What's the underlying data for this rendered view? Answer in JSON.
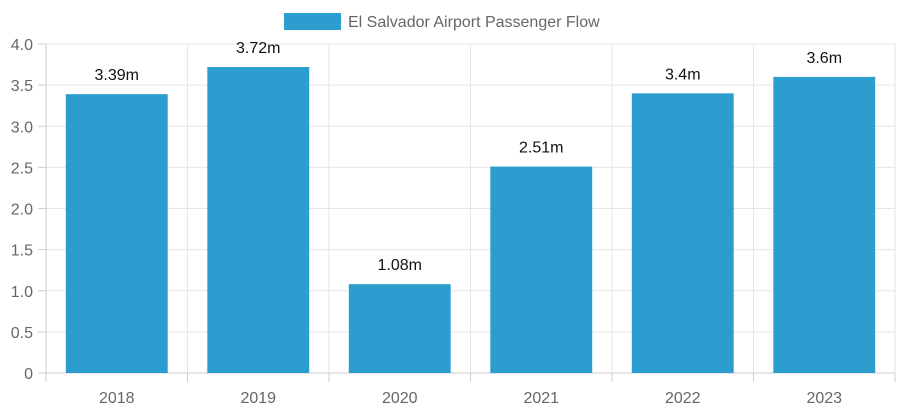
{
  "chart_data": {
    "type": "bar",
    "categories": [
      "2018",
      "2019",
      "2020",
      "2021",
      "2022",
      "2023"
    ],
    "series": [
      {
        "name": "El Salvador Airport Passenger Flow",
        "values": [
          3.39,
          3.72,
          1.08,
          2.51,
          3.4,
          3.6
        ],
        "data_labels": [
          "3.39m",
          "3.72m",
          "1.08m",
          "2.51m",
          "3.4m",
          "3.6m"
        ],
        "color": "#2b9dce"
      }
    ],
    "ylim": [
      0,
      4
    ],
    "yticks": [
      "0",
      "0.5",
      "1.0",
      "1.5",
      "2.0",
      "2.5",
      "3.0",
      "3.5",
      "4.0"
    ],
    "grid": true,
    "legend_position": "top-center"
  }
}
